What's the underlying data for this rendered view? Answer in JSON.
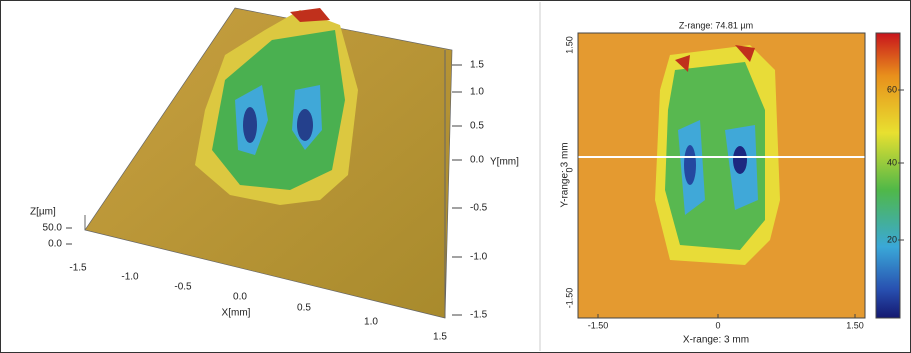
{
  "left_panel": {
    "z_label": "Z[µm]",
    "z_ticks": [
      "50.0",
      "0.0"
    ],
    "x_label": "X[mm]",
    "x_ticks": [
      "-1.5",
      "-1.0",
      "-0.5",
      "0.0",
      "0.5",
      "1.0",
      "1.5"
    ],
    "y_label": "Y[mm]",
    "y_ticks": [
      "1.5",
      "1.0",
      "0.5",
      "0.0",
      "-0.5",
      "-1.0",
      "-1.5"
    ]
  },
  "right_panel": {
    "title": "Z-range: 74.81 µm",
    "x_label": "X-range: 3 mm",
    "x_ticks": [
      "-1.50",
      "0",
      "1.50"
    ],
    "y_label": "Y-range: 3 mm",
    "y_ticks": [
      "1.50",
      "0",
      "-1.50"
    ],
    "colorbar_ticks": [
      "60",
      "40",
      "20"
    ]
  }
}
